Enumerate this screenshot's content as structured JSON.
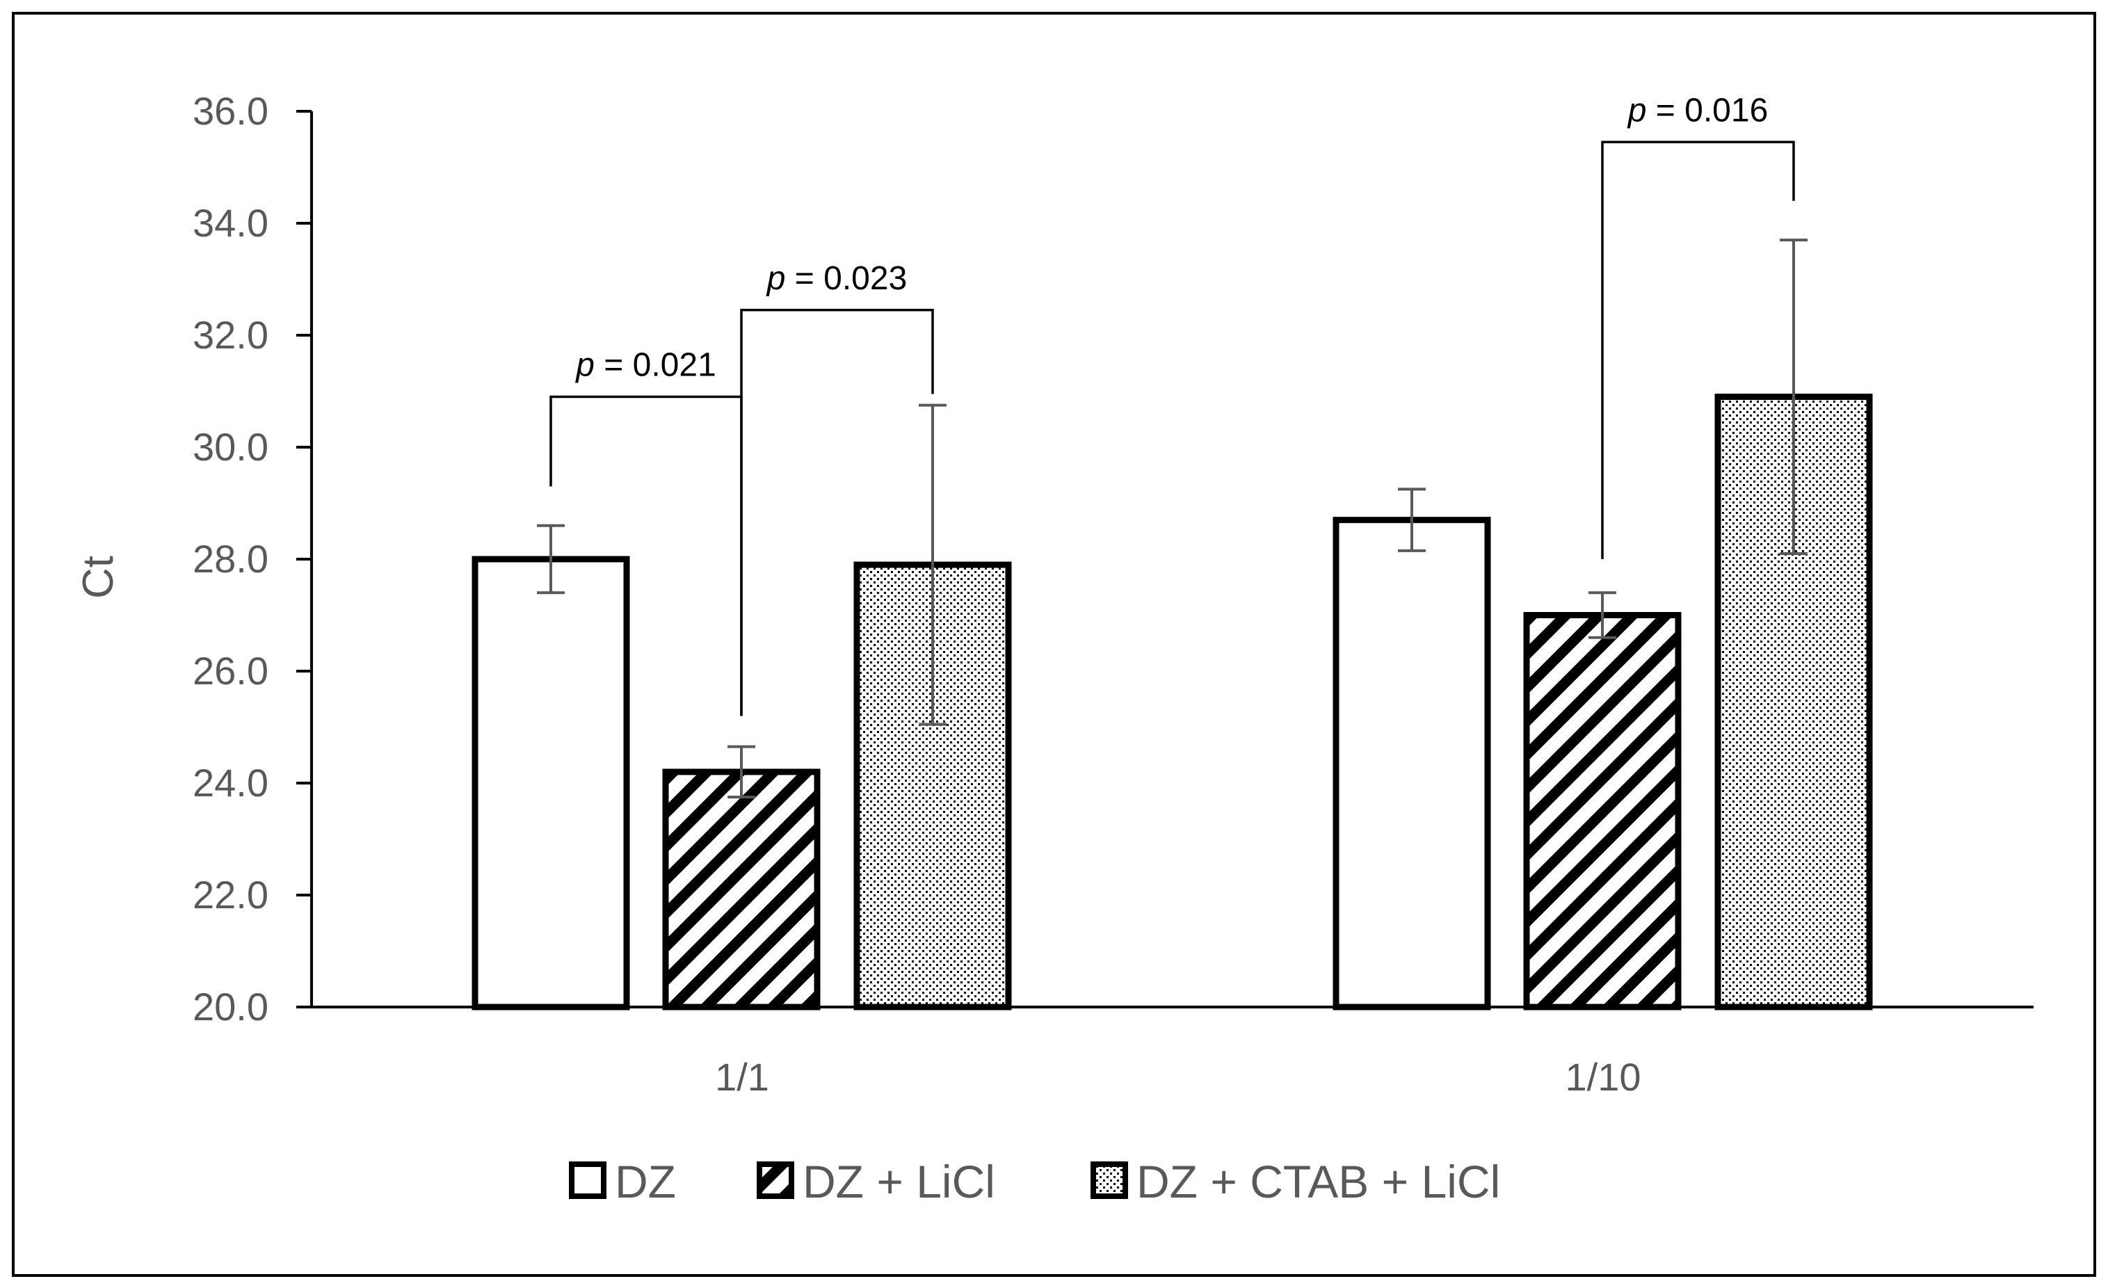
{
  "chart_data": {
    "type": "bar",
    "categories": [
      "1/1",
      "1/10"
    ],
    "ylabel": "Ct",
    "xlabel": "",
    "ylim": [
      20.0,
      36.0
    ],
    "yticks": [
      "20.0",
      "22.0",
      "24.0",
      "26.0",
      "28.0",
      "30.0",
      "32.0",
      "34.0",
      "36.0"
    ],
    "grid": false,
    "legend_position": "bottom",
    "series": [
      {
        "name": "DZ",
        "pattern": "solid-white",
        "values": [
          28.0,
          28.7
        ],
        "errors": [
          0.6,
          0.55
        ]
      },
      {
        "name": "DZ + LiCl",
        "pattern": "diagonal-stripes",
        "values": [
          24.2,
          27.0
        ],
        "errors": [
          0.45,
          0.4
        ]
      },
      {
        "name": "DZ + CTAB + LiCl",
        "pattern": "dots",
        "values": [
          27.9,
          30.9
        ],
        "errors": [
          2.85,
          2.8
        ]
      }
    ],
    "annotations": [
      {
        "p_symbol": "p",
        "p_value": " = 0.021",
        "category": 0,
        "from_series": 0,
        "to_series": 1,
        "level": 30.9,
        "left_bottom": 29.3,
        "right_bottom": 25.2
      },
      {
        "p_symbol": "p",
        "p_value": " = 0.023",
        "category": 0,
        "from_series": 1,
        "to_series": 2,
        "level": 32.45,
        "left_bottom": 25.2,
        "right_bottom": 30.95
      },
      {
        "p_symbol": "p",
        "p_value": " = 0.016",
        "category": 1,
        "from_series": 1,
        "to_series": 2,
        "level": 35.45,
        "left_bottom": 28.0,
        "right_bottom": 34.4
      }
    ],
    "colors": {
      "axis": "#000000",
      "text": "#595959",
      "error_bar": "#595959",
      "bar_stroke": "#000000"
    }
  }
}
